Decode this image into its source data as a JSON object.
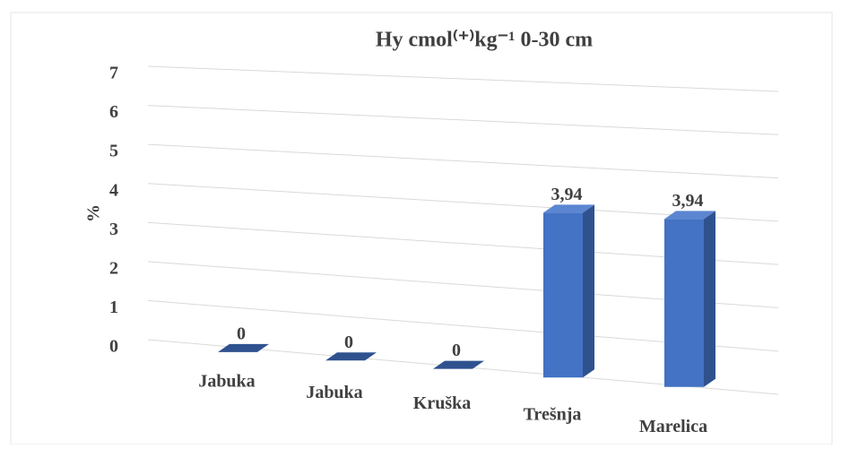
{
  "chart_data": {
    "type": "bar",
    "title": "Hy cmol⁽⁺⁾kg⁻¹ 0-30 cm",
    "y_label": "%",
    "categories": [
      "Jabuka",
      "Jabuka",
      "Kruška",
      "Trešnja",
      "Marelica"
    ],
    "values": [
      0,
      0,
      0,
      3.94,
      3.94
    ],
    "value_labels": [
      "0",
      "0",
      "0",
      "3,94",
      "3,94"
    ],
    "color": "#4472c4",
    "ylim": [
      0,
      7
    ],
    "yticks": [
      0,
      1,
      2,
      3,
      4,
      5,
      6,
      7
    ],
    "grid": true
  }
}
